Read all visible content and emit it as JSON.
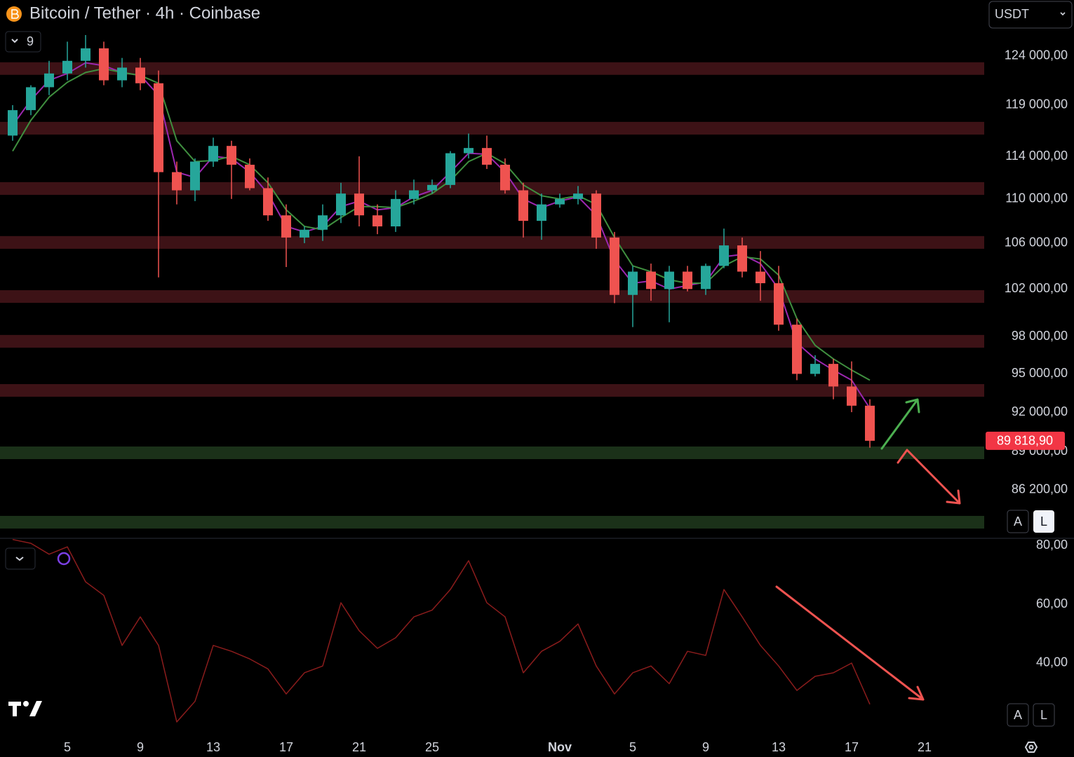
{
  "ui": {
    "currency": "USDT",
    "indicator_count": 9,
    "scale_buttons": [
      "A",
      "L"
    ]
  },
  "chart_data": [
    {
      "type": "candlestick",
      "title": "Bitcoin / Tether · 4h · Coinbase",
      "categories": [
        null,
        null,
        null,
        "5",
        null,
        null,
        null,
        "9",
        null,
        null,
        null,
        "13",
        null,
        null,
        null,
        "17",
        null,
        null,
        null,
        "21",
        null,
        null,
        null,
        "25",
        null,
        null,
        null,
        null,
        null,
        null,
        "Nov",
        null,
        null,
        null,
        "5",
        null,
        null,
        null,
        "9",
        null,
        null,
        null,
        "13",
        null,
        null,
        null,
        "17",
        null,
        null,
        null,
        "21",
        null,
        null,
        null
      ],
      "open": [
        116000,
        118500,
        120800,
        122200,
        123500,
        124800,
        121500,
        122800,
        121200,
        112500,
        110800,
        113500,
        115000,
        113200,
        111000,
        108500,
        106500,
        107200,
        108500,
        110500,
        108500,
        107500,
        110000,
        110800,
        111300,
        114300,
        114800,
        113200,
        110800,
        108000,
        109500,
        110000,
        110500,
        106500,
        101500,
        103500,
        102000,
        103500,
        102000,
        104000,
        105800,
        103500,
        102500,
        99000,
        95000,
        95800,
        94000,
        92500,
        null,
        null,
        null,
        null,
        null,
        null
      ],
      "high": [
        119000,
        121000,
        123500,
        125500,
        126200,
        125500,
        123800,
        123800,
        122500,
        113500,
        113800,
        115800,
        115500,
        113800,
        112000,
        109500,
        107500,
        109500,
        111500,
        114000,
        109500,
        110800,
        111800,
        111800,
        114500,
        116200,
        116000,
        113800,
        111500,
        110500,
        110500,
        111200,
        110800,
        107000,
        104000,
        104200,
        104000,
        104000,
        104200,
        107300,
        106500,
        105300,
        104000,
        99500,
        96500,
        96200,
        96000,
        93000,
        null,
        null,
        null,
        null,
        null,
        null
      ],
      "low": [
        115500,
        118000,
        120000,
        121500,
        122800,
        121000,
        120800,
        120500,
        103000,
        109500,
        109800,
        113000,
        110000,
        110800,
        108000,
        103900,
        106000,
        106200,
        107800,
        107500,
        106800,
        107000,
        109500,
        110500,
        111000,
        113800,
        112800,
        110500,
        106500,
        106300,
        109200,
        109500,
        105500,
        100800,
        98800,
        101000,
        99200,
        101800,
        101500,
        103800,
        103000,
        101000,
        98500,
        94500,
        94800,
        93000,
        92000,
        89300,
        null,
        null,
        null,
        null,
        null,
        null
      ],
      "close": [
        118500,
        120800,
        122200,
        123500,
        124800,
        121500,
        122800,
        121200,
        112500,
        110800,
        113500,
        115000,
        113200,
        111000,
        108500,
        106500,
        107200,
        108500,
        110500,
        108500,
        107500,
        110000,
        110800,
        111300,
        114300,
        114800,
        113200,
        110800,
        108000,
        109500,
        110000,
        110500,
        106500,
        101500,
        103500,
        102000,
        103500,
        102000,
        104000,
        105800,
        103500,
        102500,
        99000,
        95000,
        95800,
        94000,
        92500,
        89818.9,
        null,
        null,
        null,
        null,
        null,
        null
      ],
      "up_color": "#26a69a",
      "down_color": "#ef5350",
      "overlays": [
        {
          "color": "#9c27b0",
          "values": [
            117000,
            119500,
            121500,
            122200,
            123300,
            123000,
            122300,
            122000,
            120000,
            112500,
            112000,
            114000,
            113800,
            112500,
            110500,
            107500,
            107000,
            107500,
            109300,
            109800,
            109000,
            109200,
            110200,
            110800,
            112500,
            114300,
            114200,
            112500,
            110000,
            109200,
            109800,
            110200,
            108500,
            104500,
            102500,
            102700,
            102000,
            102300,
            102600,
            104800,
            105000,
            104200,
            102000,
            97500,
            96200,
            95300,
            94500,
            92300,
            null,
            null,
            null,
            null,
            null,
            null
          ]
        },
        {
          "color": "#3f8f3f",
          "values": [
            114500,
            117500,
            119800,
            121300,
            122300,
            122700,
            122300,
            122000,
            121200,
            115500,
            113500,
            113600,
            114000,
            113200,
            111500,
            109000,
            107500,
            107200,
            108300,
            109300,
            109300,
            109200,
            109800,
            110500,
            111700,
            113500,
            114300,
            113300,
            111300,
            110300,
            110000,
            110300,
            109500,
            106500,
            104000,
            103500,
            102800,
            102500,
            102500,
            104000,
            104800,
            104600,
            103200,
            99500,
            97300,
            96200,
            95300,
            94500,
            null,
            null,
            null,
            null,
            null,
            null
          ]
        }
      ],
      "zones": [
        {
          "low": 122060,
          "high": 123350,
          "color": "#3d1216"
        },
        {
          "low": 116100,
          "high": 117340,
          "color": "#3d1216"
        },
        {
          "low": 110380,
          "high": 111560,
          "color": "#3d1216"
        },
        {
          "low": 105500,
          "high": 106630,
          "color": "#3d1216"
        },
        {
          "low": 100830,
          "high": 101900,
          "color": "#3d1216"
        },
        {
          "low": 97110,
          "high": 98150,
          "color": "#3d1216"
        },
        {
          "low": 93200,
          "high": 94190,
          "color": "#3d1216"
        },
        {
          "low": 88450,
          "high": 89390,
          "color": "#1b3119"
        },
        {
          "low": 83450,
          "high": 84340,
          "color": "#1b3119"
        }
      ],
      "last_price": {
        "value": 89818.9,
        "label": "89 818,90",
        "color": "#f23645"
      },
      "log_scale": true,
      "grid": false,
      "ylim": [
        82770,
        129960
      ],
      "yticks": [
        {
          "value": 124000,
          "label": "124 000,00"
        },
        {
          "value": 119000,
          "label": "119 000,00"
        },
        {
          "value": 114000,
          "label": "114 000,00"
        },
        {
          "value": 110000,
          "label": "110 000,00"
        },
        {
          "value": 106000,
          "label": "106 000,00"
        },
        {
          "value": 102000,
          "label": "102 000,00"
        },
        {
          "value": 98000,
          "label": "98 000,00"
        },
        {
          "value": 95000,
          "label": "95 000,00"
        },
        {
          "value": 92000,
          "label": "92 000,00"
        },
        {
          "value": 89000,
          "label": "89 000,00"
        },
        {
          "value": 86200,
          "label": "86 200,00"
        }
      ]
    },
    {
      "type": "line",
      "color": "#8b1c1c",
      "values": [
        82,
        80.7,
        77,
        79.5,
        67.6,
        63,
        46,
        55.7,
        46,
        20,
        27,
        46,
        44,
        41.4,
        38,
        29.5,
        36.7,
        39,
        60.5,
        51,
        45,
        48.6,
        55.7,
        58,
        65,
        74.8,
        60.5,
        55.7,
        36.7,
        44,
        47.4,
        53.3,
        39,
        29.5,
        36.7,
        39,
        33,
        44,
        42.6,
        65,
        55.7,
        46,
        39,
        30.7,
        35.5,
        36.7,
        40,
        26,
        null,
        null,
        null,
        null,
        null,
        null
      ],
      "log_scale": false,
      "grid": false,
      "ylim": [
        15.7,
        82.4
      ],
      "yticks": [
        {
          "value": 80,
          "label": "80,00"
        },
        {
          "value": 60,
          "label": "60,00"
        },
        {
          "value": 40,
          "label": "40,00"
        }
      ]
    }
  ]
}
